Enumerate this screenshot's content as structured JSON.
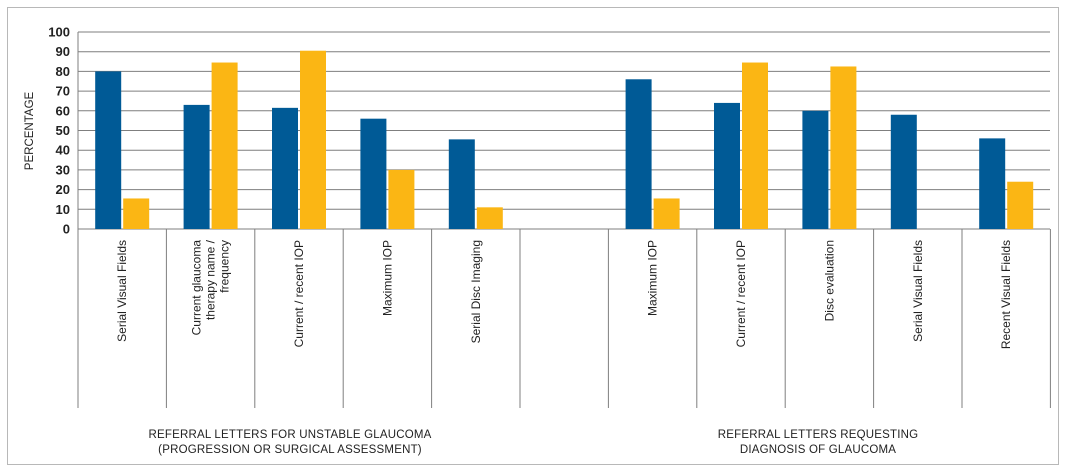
{
  "chart_data": {
    "type": "bar",
    "ylabel": "PERCENTAGE",
    "ylim": [
      0,
      100
    ],
    "yticks": [
      0,
      10,
      20,
      30,
      40,
      50,
      60,
      70,
      80,
      90,
      100
    ],
    "grid": true,
    "categories": [
      "Serial Visual Fields",
      "Current glaucoma therapy name / frequency",
      "Current / recent IOP",
      "Maximum IOP",
      "Serial Disc Imaging",
      "",
      "Maximum IOP",
      "Current / recent IOP",
      "Disc evaluation",
      "Serial Visual Fields",
      "Recent Visual Fields"
    ],
    "category_lines": [
      [
        "Serial Visual Fields"
      ],
      [
        "Current glaucoma",
        "therapy name /",
        "frequency"
      ],
      [
        "Current / recent IOP"
      ],
      [
        "Maximum IOP"
      ],
      [
        "Serial Disc Imaging"
      ],
      [],
      [
        "Maximum IOP"
      ],
      [
        "Current / recent IOP"
      ],
      [
        "Disc evaluation"
      ],
      [
        "Serial Visual Fields"
      ],
      [
        "Recent Visual Fields"
      ]
    ],
    "series": [
      {
        "color": "#005a96",
        "values": [
          80,
          63,
          61.5,
          56,
          45.5,
          null,
          76,
          64,
          60,
          58,
          46
        ]
      },
      {
        "color": "#fbb614",
        "values": [
          15.5,
          84.5,
          90.5,
          30,
          11,
          null,
          15.5,
          84.5,
          82.5,
          null,
          24
        ]
      }
    ],
    "groups": [
      {
        "lines": [
          "REFERRAL LETTERS FOR UNSTABLE GLAUCOMA",
          "(PROGRESSION OR SURGICAL ASSESSMENT)"
        ]
      },
      {
        "lines": [
          "REFERRAL LETTERS REQUESTING",
          "DIAGNOSIS OF GLAUCOMA"
        ]
      }
    ]
  }
}
